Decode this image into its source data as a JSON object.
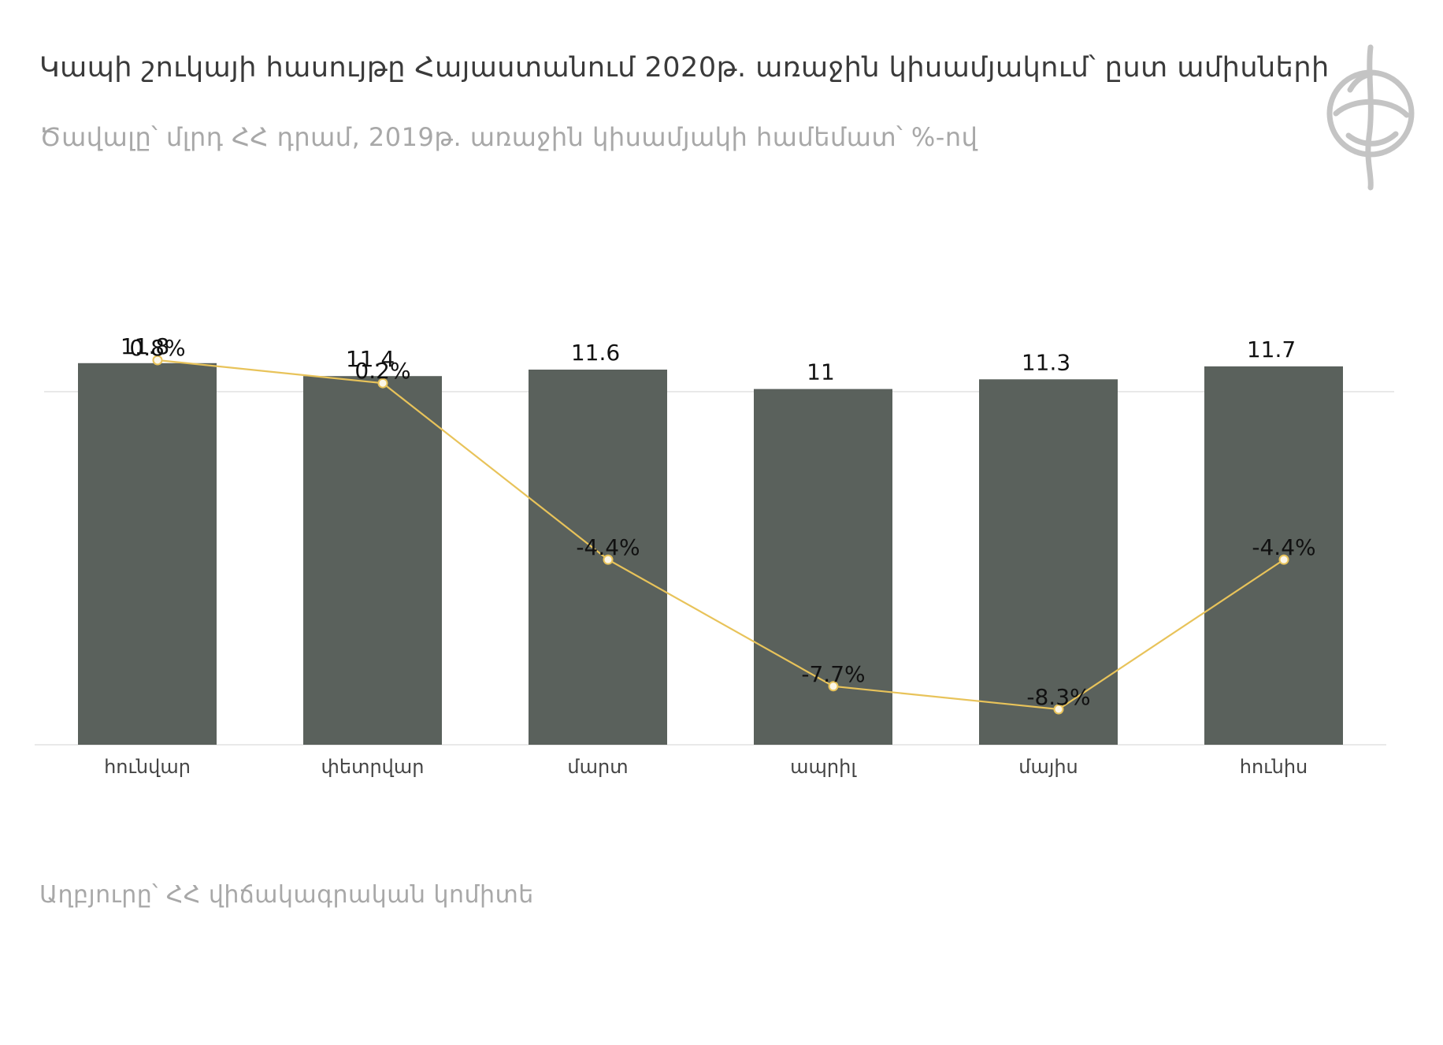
{
  "header": {
    "title": "Կապի շուկայի հասույթը Հայաստանում 2020թ. առաջին կիսամյակում՝ ըստ ամիսների",
    "subtitle": "Ծավալը՝ մլրդ ՀՀ դրամ, 2019թ. առաջին կիսամյակի համեմատ՝ %-ով"
  },
  "footer": {
    "source": "Աղբյուրը՝ ՀՀ վիճակագրական կոմիտե"
  },
  "colors": {
    "bar": "#5a615c",
    "line": "#e8c35a",
    "marker_fill": "#fbf6e8",
    "label": "#111111",
    "axis_label": "#444444",
    "grid": "#e2e2e2",
    "logo": "#c4c4c4"
  },
  "logo": {
    "icon": "organization-logo-icon"
  },
  "chart_data": {
    "type": "bar",
    "categories": [
      "հունվար",
      "փետրվար",
      "մարտ",
      "ապրիլ",
      "մայիս",
      "հունիս"
    ],
    "series": [
      {
        "type": "bar",
        "values": [
          11.8,
          11.4,
          11.6,
          11,
          11.3,
          11.7
        ],
        "labels": [
          "11.8",
          "11.4",
          "11.6",
          "11",
          "11.3",
          "11.7"
        ]
      },
      {
        "type": "line",
        "values": [
          0.8,
          0.2,
          -4.4,
          -7.7,
          -8.3,
          -4.4
        ],
        "labels": [
          "0.8%",
          "0.2%",
          "-4.4%",
          "-7.7%",
          "-8.3%",
          "-4.4%"
        ]
      }
    ],
    "bar_axis": {
      "ylim": [
        0,
        14.5
      ]
    },
    "line_axis": {
      "ylim": [
        -9.9,
        1.5
      ],
      "reference_line": 0
    },
    "xlabel": "",
    "ylabel": "",
    "grid": false,
    "legend": "none"
  }
}
